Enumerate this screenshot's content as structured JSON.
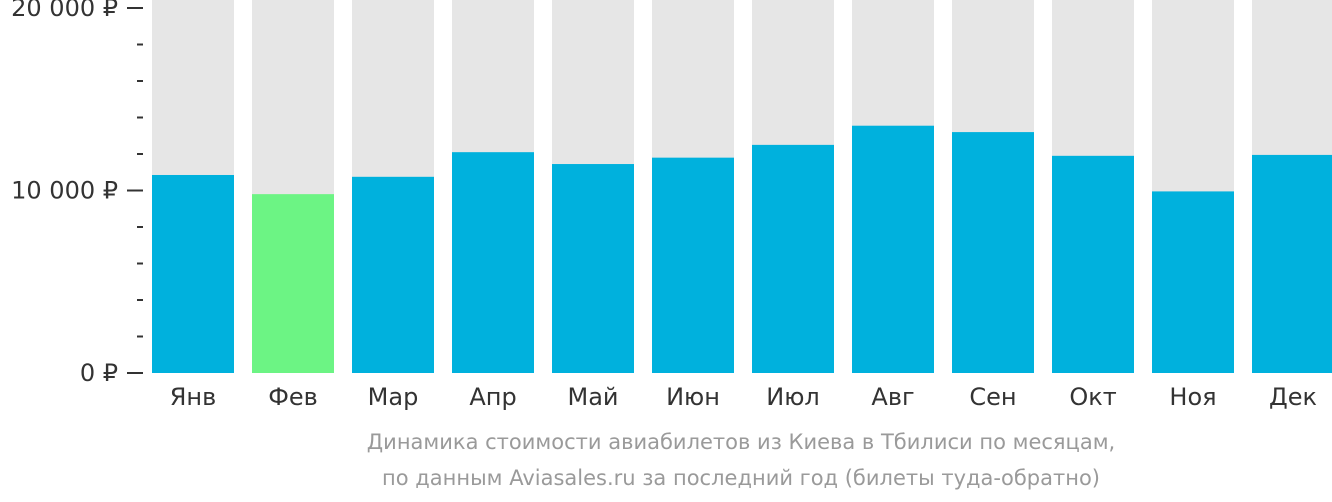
{
  "colors": {
    "bar": "#00b1dd",
    "highlight": "#6cf484",
    "track": "#e6e6e6",
    "axis_text": "#333333",
    "caption": "#9a9a9a"
  },
  "chart_data": {
    "type": "bar",
    "categories": [
      "Янв",
      "Фев",
      "Мар",
      "Апр",
      "Май",
      "Июн",
      "Июл",
      "Авг",
      "Сен",
      "Окт",
      "Ноя",
      "Дек"
    ],
    "values": [
      10850,
      9800,
      10750,
      12100,
      11450,
      11800,
      12500,
      13550,
      13200,
      11900,
      9950,
      11950
    ],
    "highlight_category": "Фев",
    "ylim": [
      0,
      20000
    ],
    "yticks": [
      {
        "value": 20000,
        "label": "20 000 ₽"
      },
      {
        "value": 10000,
        "label": "10 000 ₽"
      },
      {
        "value": 0,
        "label": "0 ₽"
      }
    ],
    "minor_tick_step": 2000,
    "grid": false,
    "title": "",
    "xlabel": "",
    "ylabel": ""
  },
  "caption": {
    "line1": "Динамика стоимости авиабилетов из Киева в Тбилиси по месяцам,",
    "line2": "по данным Aviasales.ru за последний год (билеты туда-обратно)"
  }
}
